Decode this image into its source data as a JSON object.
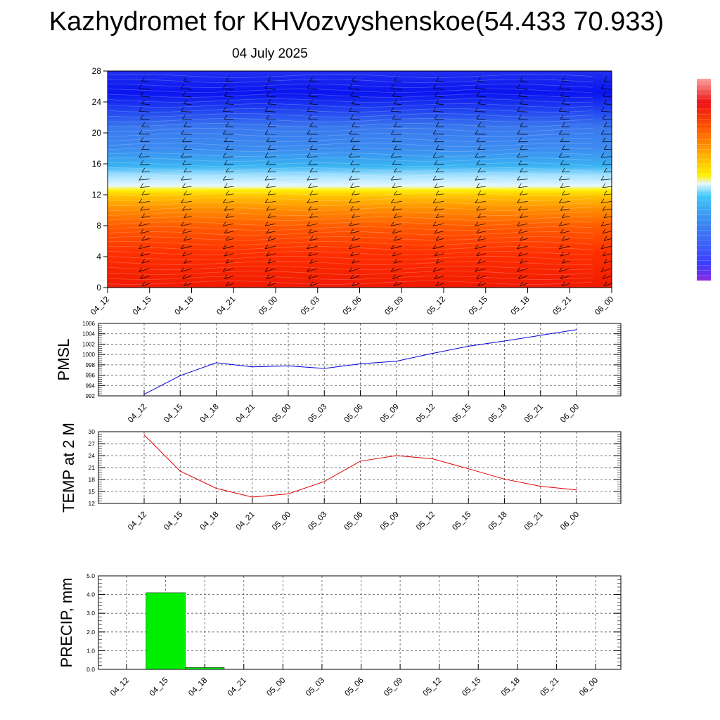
{
  "header": {
    "title": "Kazhydromet for KHVozvyshenskoe(54.433 70.933)",
    "date": "04 July 2025"
  },
  "time_labels": [
    "04_12",
    "04_15",
    "04_18",
    "04_21",
    "05_00",
    "05_03",
    "05_06",
    "05_09",
    "05_12",
    "05_15",
    "05_18",
    "05_21",
    "06_00"
  ],
  "colors": {
    "pmsl_line": "#0000dd",
    "temp_line": "#e00000",
    "precip_bar": "#00ee00",
    "grid": "#555555"
  },
  "chart_data": [
    {
      "type": "heatmap",
      "title": "",
      "x": [
        "04_12",
        "04_15",
        "04_18",
        "04_21",
        "05_00",
        "05_03",
        "05_06",
        "05_09",
        "05_12",
        "05_15",
        "05_18",
        "05_21",
        "06_00"
      ],
      "ylim": [
        0,
        28
      ],
      "yticks": [
        0,
        4,
        8,
        12,
        16,
        20,
        24,
        28
      ],
      "description_bands": [
        {
          "y_from": 0,
          "y_to": 12.5,
          "palette": "red-orange-yellow"
        },
        {
          "y_from": 12.5,
          "y_to": 16,
          "palette": "light-blue"
        },
        {
          "y_from": 16,
          "y_to": 28,
          "palette": "blue"
        }
      ],
      "colorbar": {
        "palette": "rainbow",
        "labels": []
      }
    },
    {
      "type": "line",
      "ylabel": "PMSL",
      "x": [
        "04_12",
        "04_15",
        "04_18",
        "04_21",
        "05_00",
        "05_03",
        "05_06",
        "05_09",
        "05_12",
        "05_15",
        "05_18",
        "05_21",
        "06_00"
      ],
      "series": [
        {
          "values": [
            992.3,
            995.9,
            998.4,
            997.6,
            997.8,
            997.3,
            998.2,
            998.7,
            1000.2,
            1001.6,
            1002.6,
            1003.7,
            1004.8
          ]
        }
      ],
      "ylim": [
        992,
        1006
      ],
      "yticks": [
        992,
        994,
        996,
        998,
        1000,
        1002,
        1004,
        1006
      ],
      "grid": true
    },
    {
      "type": "line",
      "ylabel": "TEMP at 2 M",
      "x": [
        "04_12",
        "04_15",
        "04_18",
        "04_21",
        "05_00",
        "05_03",
        "05_06",
        "05_09",
        "05_12",
        "05_15",
        "05_18",
        "05_21",
        "06_00"
      ],
      "series": [
        {
          "values": [
            29.2,
            20.1,
            15.8,
            13.6,
            14.4,
            17.5,
            22.6,
            24.0,
            23.2,
            20.7,
            18.1,
            16.3,
            15.4
          ]
        }
      ],
      "ylim": [
        12,
        30
      ],
      "yticks": [
        12,
        15,
        18,
        21,
        24,
        27,
        30
      ],
      "grid": true
    },
    {
      "type": "bar",
      "ylabel": "PRECIP, mm",
      "categories": [
        "04_12",
        "04_15",
        "04_18",
        "04_21",
        "05_00",
        "05_03",
        "05_06",
        "05_09",
        "05_12",
        "05_15",
        "05_18",
        "05_21",
        "06_00"
      ],
      "values": [
        0,
        4.1,
        0.1,
        0,
        0,
        0,
        0,
        0,
        0,
        0,
        0,
        0,
        0
      ],
      "ylim": [
        0,
        5
      ],
      "yticks": [
        "0.0",
        "1.0",
        "2.0",
        "3.0",
        "4.0",
        "5.0"
      ],
      "grid": true
    }
  ]
}
